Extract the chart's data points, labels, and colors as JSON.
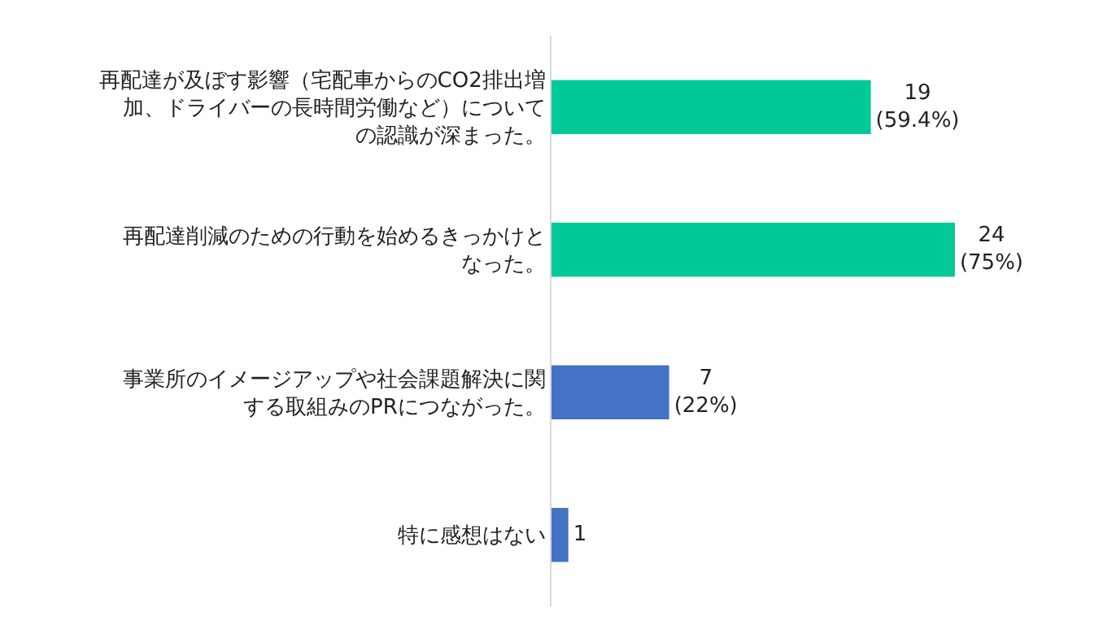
{
  "chart_data": {
    "type": "bar",
    "orientation": "horizontal",
    "categories": [
      "再配達が及ぼす影響（宅配車からのCO2排出増加、ドライバーの長時間労働など）についての認識が深まった。",
      "再配達削減のための行動を始めるきっかけとなった。",
      "事業所のイメージアップや社会課題解決に関する取組みのPRにつながった。",
      "特に感想はない"
    ],
    "values": [
      19,
      24,
      7,
      1
    ],
    "colors": [
      "#00c997",
      "#00c997",
      "#4472c4",
      "#4472c4"
    ],
    "value_labels": [
      "19 (59.4%)",
      "24 (75%)",
      "7 (22%)",
      "1"
    ],
    "tick_labels": "y",
    "grid": false
  }
}
